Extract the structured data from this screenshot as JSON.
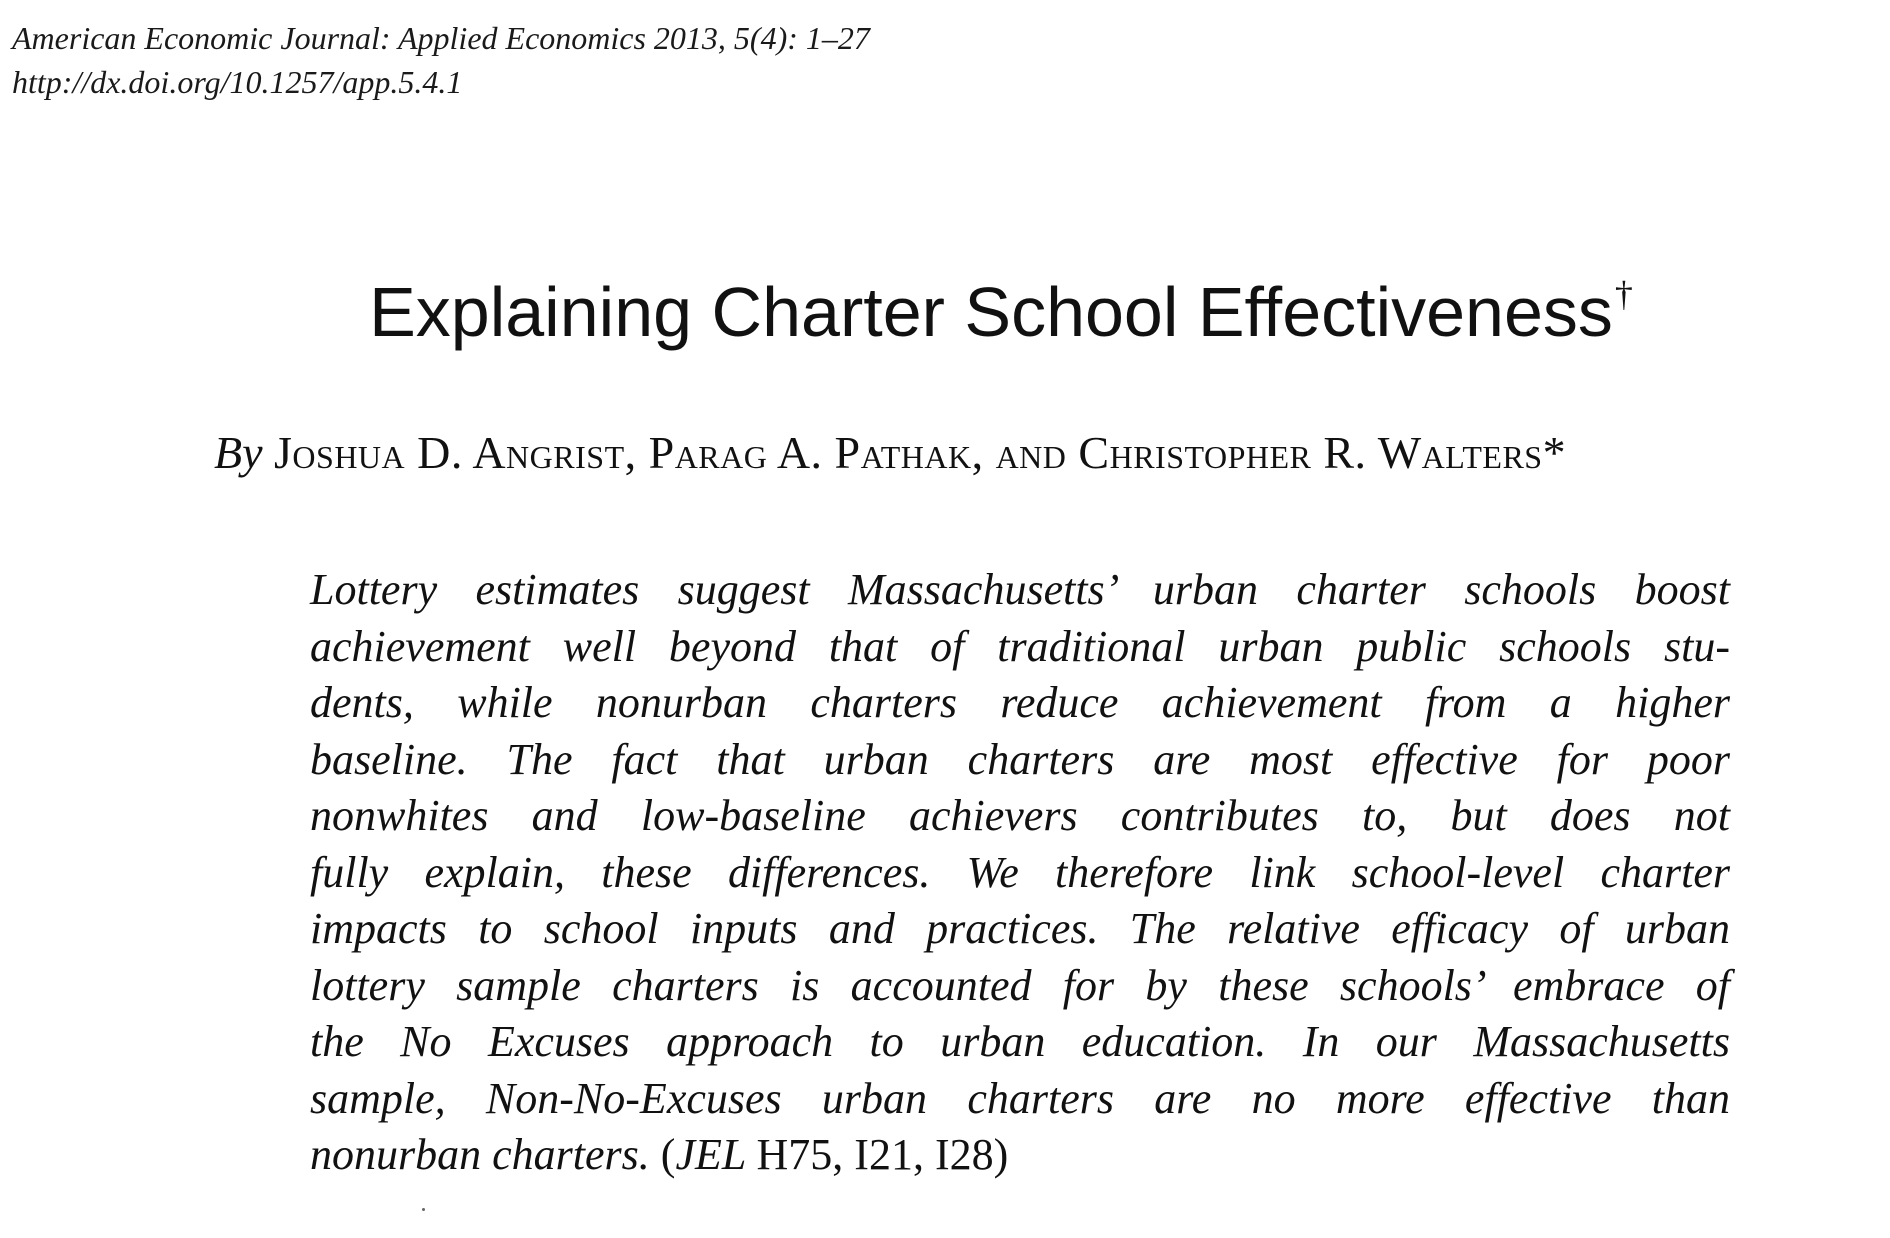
{
  "header": {
    "journal_line": "American Economic Journal: Applied Economics 2013, 5(4): 1–27",
    "doi_line": "http://dx.doi.org/10.1257/app.5.4.1"
  },
  "title": {
    "text": "Explaining Charter School Effectiveness",
    "footnote_mark": "†"
  },
  "byline": {
    "prefix": "By",
    "authors": "Joshua D. Angrist, Parag A. Pathak, and Christopher R. Walters*"
  },
  "abstract": {
    "lines": [
      "Lottery estimates suggest Massachusetts’ urban charter schools boost",
      "achievement well beyond that of traditional urban public schools stu-",
      "dents, while nonurban charters reduce achievement from a higher",
      "baseline. The fact that urban charters are most effective for poor",
      "nonwhites and low-baseline achievers contributes to, but does not",
      "fully explain, these differences. We therefore link school-level charter",
      "impacts to school inputs and practices. The relative efficacy of urban",
      "lottery sample charters is accounted for by these schools’ embrace of",
      "the No Excuses approach to urban education. In our Massachusetts",
      "sample, Non-No-Excuses urban charters are no more effective than"
    ],
    "last_line_text": "nonurban charters.",
    "jel_open": "(",
    "jel_label": "JEL",
    "jel_codes": "H75, I21, I28)"
  }
}
